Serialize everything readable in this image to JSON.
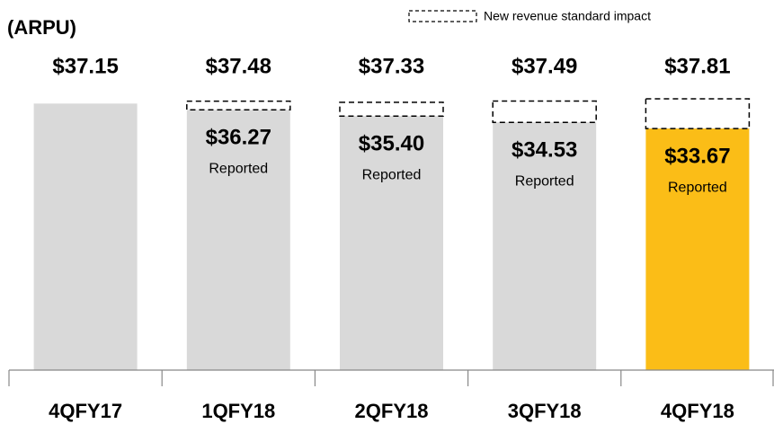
{
  "chart_data": {
    "type": "bar",
    "title": "(ARPU)",
    "categories": [
      "4QFY17",
      "1QFY18",
      "2QFY18",
      "3QFY18",
      "4QFY18"
    ],
    "series": [
      {
        "name": "Reported",
        "colors": [
          "#d9d9d9",
          "#d9d9d9",
          "#d9d9d9",
          "#d9d9d9",
          "#fbbd17"
        ],
        "values": [
          37.15,
          36.27,
          35.4,
          34.53,
          33.67
        ],
        "value_labels": [
          null,
          "$36.27",
          "$35.40",
          "$34.53",
          "$33.67"
        ]
      },
      {
        "name": "New revenue standard impact",
        "style": "dashed",
        "color": "#000000",
        "values": [
          null,
          1.21,
          1.93,
          2.96,
          4.14
        ]
      }
    ],
    "totals": [
      37.15,
      37.48,
      37.33,
      37.49,
      37.81
    ],
    "total_labels": [
      "$37.15",
      "$37.48",
      "$37.33",
      "$37.49",
      "$37.81"
    ],
    "legend": "top-right"
  }
}
